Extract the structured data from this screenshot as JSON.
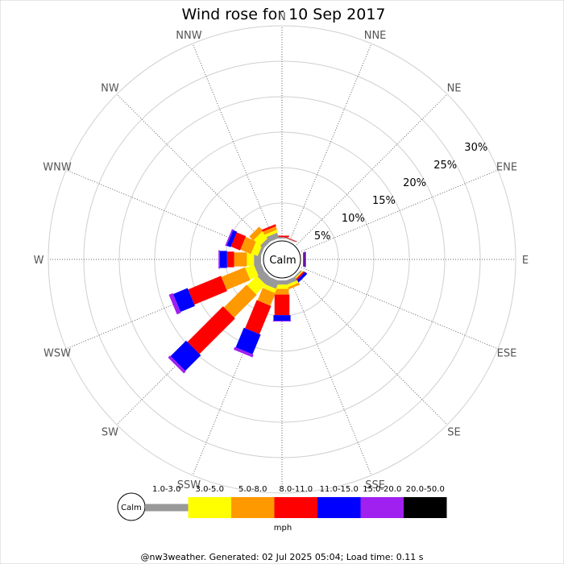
{
  "chart_data": {
    "type": "wind-rose",
    "title": "Wind rose for 10 Sep 2017",
    "directions": [
      "N",
      "NNE",
      "NE",
      "ENE",
      "E",
      "ESE",
      "SE",
      "SSE",
      "S",
      "SSW",
      "SW",
      "WSW",
      "W",
      "WNW",
      "NW",
      "NNW"
    ],
    "radial_ticks": [
      "5%",
      "10%",
      "15%",
      "20%",
      "25%",
      "30%"
    ],
    "radial_max_percent": 30,
    "calm_label": "Calm",
    "unit": "mph",
    "bins": [
      {
        "label": "1.0-3.0",
        "color": "#999999"
      },
      {
        "label": "3.0-5.0",
        "color": "#ffff00"
      },
      {
        "label": "5.0-8.0",
        "color": "#ff9900"
      },
      {
        "label": "8.0-11.0",
        "color": "#ff0000"
      },
      {
        "label": "11.0-15.0",
        "color": "#0000ff"
      },
      {
        "label": "15.0-20.0",
        "color": "#a020f0"
      },
      {
        "label": "20.0-50.0",
        "color": "#000000"
      }
    ],
    "series_percent_by_direction": {
      "N": [
        0.2,
        0.0,
        0.0,
        0.2,
        0.0,
        0.0,
        0.0
      ],
      "NNE": [
        0.1,
        0.0,
        0.0,
        0.1,
        0.0,
        0.0,
        0.0
      ],
      "NE": [
        0.0,
        0.0,
        0.0,
        0.0,
        0.0,
        0.0,
        0.0
      ],
      "ENE": [
        0.0,
        0.0,
        0.0,
        0.0,
        0.0,
        0.0,
        0.0
      ],
      "E": [
        0.0,
        0.0,
        0.0,
        0.2,
        0.2,
        0.0,
        0.0
      ],
      "ESE": [
        0.0,
        0.0,
        0.0,
        0.0,
        0.0,
        0.0,
        0.0
      ],
      "SE": [
        0.2,
        0.1,
        0.1,
        0.2,
        0.4,
        0.0,
        0.0
      ],
      "SSE": [
        0.6,
        0.4,
        0.3,
        0.0,
        0.0,
        0.0,
        0.0
      ],
      "S": [
        0.6,
        0.6,
        0.8,
        2.9,
        0.8,
        0.1,
        0.0
      ],
      "SSW": [
        1.2,
        0.6,
        1.9,
        4.3,
        3.0,
        0.4,
        0.0
      ],
      "SW": [
        1.2,
        1.9,
        4.5,
        7.1,
        3.1,
        0.4,
        0.0
      ],
      "WSW": [
        1.0,
        1.3,
        3.6,
        5.0,
        2.2,
        0.6,
        0.0
      ],
      "W": [
        1.0,
        1.0,
        1.8,
        1.0,
        1.0,
        0.2,
        0.0
      ],
      "WNW": [
        0.4,
        1.0,
        1.6,
        1.4,
        0.6,
        0.2,
        0.0
      ],
      "NW": [
        0.6,
        1.2,
        0.8,
        0.0,
        0.0,
        0.0,
        0.0
      ],
      "NNW": [
        0.8,
        0.4,
        0.5,
        0.3,
        0.0,
        0.0,
        0.0
      ]
    },
    "legend_placement": "bottom",
    "footer": "@nw3weather. Generated: 02 Jul 2025 05:04; Load time: 0.11 s"
  }
}
